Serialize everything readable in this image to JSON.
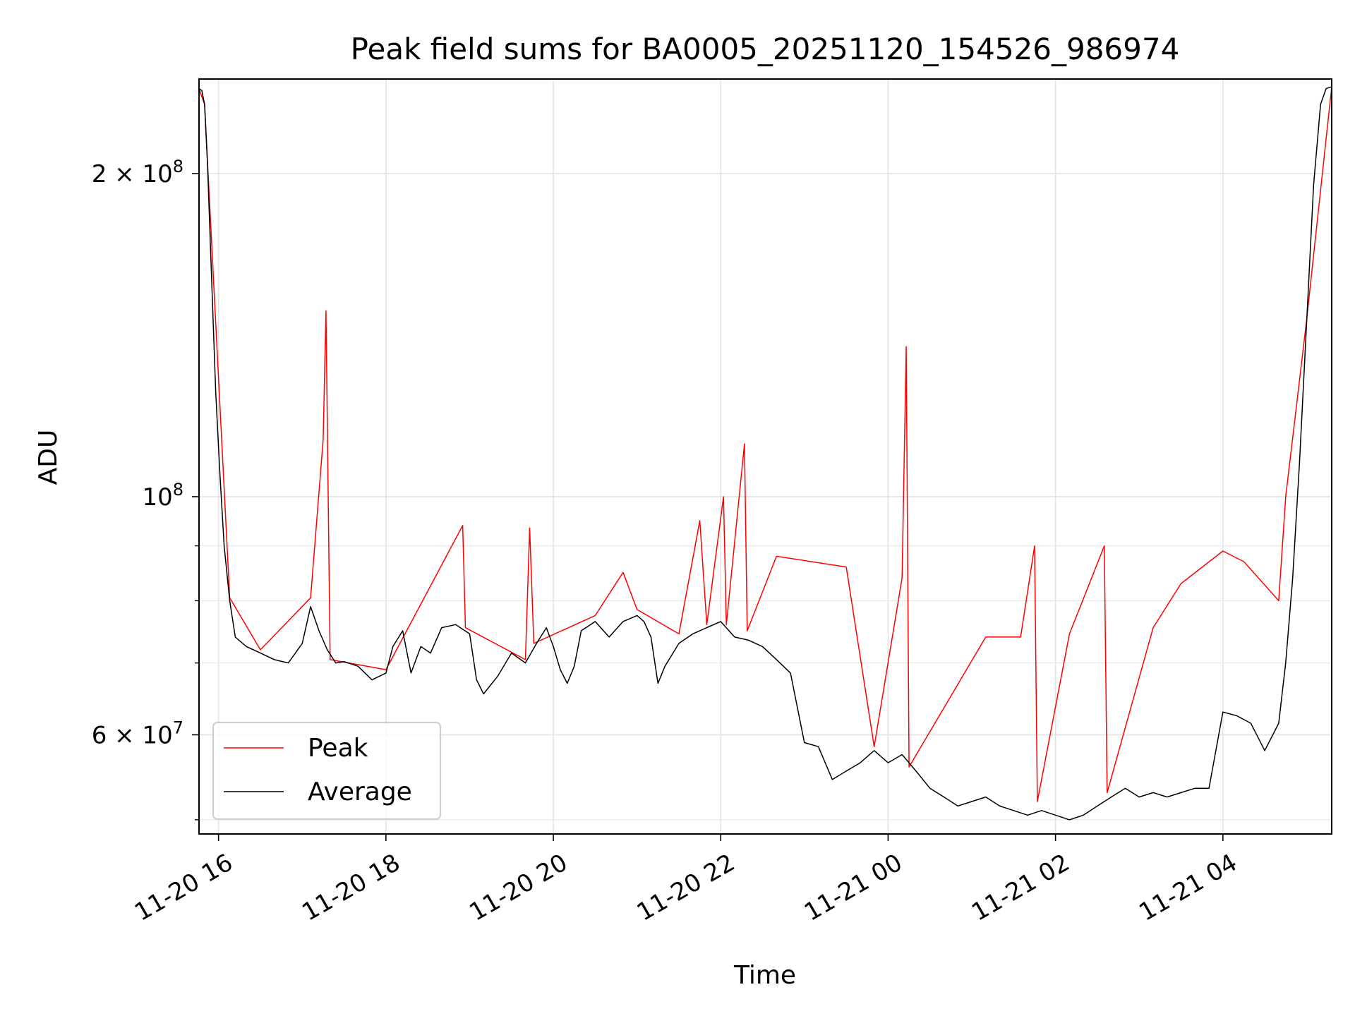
{
  "chart_data": {
    "type": "line",
    "title": "Peak field sums for BA0005_20251120_154526_986974",
    "xlabel": "Time",
    "ylabel": "ADU",
    "x_range": [
      "2025-11-20 15:46",
      "2025-11-21 05:18"
    ],
    "y_scale": "log",
    "ylim": [
      48500000,
      245000000
    ],
    "grid": true,
    "legend_position": "lower-left",
    "x_ticks": [
      "11-20 16",
      "11-20 18",
      "11-20 20",
      "11-20 22",
      "11-21 00",
      "11-21 02",
      "11-21 04"
    ],
    "y_ticks_major": [
      {
        "value": 200000000,
        "label_base": "2 × 10",
        "label_exp": "8"
      },
      {
        "value": 100000000,
        "label_base": "10",
        "label_exp": "8"
      },
      {
        "value": 60000000,
        "label_base": "6 × 10",
        "label_exp": "7"
      }
    ],
    "y_ticks_minor": [
      50000000,
      70000000,
      80000000,
      90000000
    ],
    "series": [
      {
        "name": "Average",
        "color": "#000000",
        "points": [
          [
            "15:46",
            240000000
          ],
          [
            "15:48",
            239000000
          ],
          [
            "15:50",
            232000000
          ],
          [
            "15:52",
            205000000
          ],
          [
            "15:55",
            160000000
          ],
          [
            "15:58",
            125000000
          ],
          [
            "16:01",
            105000000
          ],
          [
            "16:04",
            90000000
          ],
          [
            "16:08",
            80000000
          ],
          [
            "16:12",
            74000000
          ],
          [
            "16:20",
            72500000
          ],
          [
            "16:30",
            71500000
          ],
          [
            "16:40",
            70500000
          ],
          [
            "16:50",
            70000000
          ],
          [
            "17:00",
            73000000
          ],
          [
            "17:06",
            79000000
          ],
          [
            "17:12",
            75000000
          ],
          [
            "17:18",
            72000000
          ],
          [
            "17:24",
            70000000
          ],
          [
            "17:30",
            70200000
          ],
          [
            "17:40",
            69500000
          ],
          [
            "17:50",
            67500000
          ],
          [
            "18:00",
            68500000
          ],
          [
            "18:05",
            72500000
          ],
          [
            "18:12",
            75000000
          ],
          [
            "18:18",
            68500000
          ],
          [
            "18:25",
            72500000
          ],
          [
            "18:32",
            71500000
          ],
          [
            "18:40",
            75500000
          ],
          [
            "18:50",
            76000000
          ],
          [
            "19:00",
            74500000
          ],
          [
            "19:05",
            67500000
          ],
          [
            "19:10",
            65500000
          ],
          [
            "19:20",
            68000000
          ],
          [
            "19:30",
            71500000
          ],
          [
            "19:40",
            70000000
          ],
          [
            "19:48",
            73000000
          ],
          [
            "19:55",
            75500000
          ],
          [
            "20:00",
            72500000
          ],
          [
            "20:05",
            69000000
          ],
          [
            "20:10",
            67000000
          ],
          [
            "20:15",
            69500000
          ],
          [
            "20:20",
            75000000
          ],
          [
            "20:30",
            76500000
          ],
          [
            "20:40",
            74000000
          ],
          [
            "20:50",
            76500000
          ],
          [
            "21:00",
            77500000
          ],
          [
            "21:05",
            76500000
          ],
          [
            "21:10",
            74000000
          ],
          [
            "21:15",
            67000000
          ],
          [
            "21:20",
            69500000
          ],
          [
            "21:30",
            73000000
          ],
          [
            "21:40",
            74500000
          ],
          [
            "21:50",
            75500000
          ],
          [
            "22:00",
            76500000
          ],
          [
            "22:10",
            74000000
          ],
          [
            "22:20",
            73500000
          ],
          [
            "22:30",
            72500000
          ],
          [
            "22:40",
            70500000
          ],
          [
            "22:50",
            68500000
          ],
          [
            "23:00",
            59000000
          ],
          [
            "23:10",
            58500000
          ],
          [
            "23:20",
            54500000
          ],
          [
            "23:30",
            55500000
          ],
          [
            "23:40",
            56500000
          ],
          [
            "23:50",
            58000000
          ],
          [
            "00:00",
            56500000
          ],
          [
            "00:10",
            57500000
          ],
          [
            "00:20",
            55500000
          ],
          [
            "00:30",
            53500000
          ],
          [
            "00:40",
            52500000
          ],
          [
            "00:50",
            51500000
          ],
          [
            "01:00",
            52000000
          ],
          [
            "01:10",
            52500000
          ],
          [
            "01:20",
            51500000
          ],
          [
            "01:30",
            51000000
          ],
          [
            "01:40",
            50500000
          ],
          [
            "01:50",
            51000000
          ],
          [
            "02:00",
            50500000
          ],
          [
            "02:10",
            50000000
          ],
          [
            "02:20",
            50500000
          ],
          [
            "02:30",
            51500000
          ],
          [
            "02:40",
            52500000
          ],
          [
            "02:50",
            53500000
          ],
          [
            "03:00",
            52500000
          ],
          [
            "03:10",
            53000000
          ],
          [
            "03:20",
            52500000
          ],
          [
            "03:30",
            53000000
          ],
          [
            "03:40",
            53500000
          ],
          [
            "03:50",
            53500000
          ],
          [
            "04:00",
            63000000
          ],
          [
            "04:10",
            62500000
          ],
          [
            "04:20",
            61500000
          ],
          [
            "04:30",
            58000000
          ],
          [
            "04:40",
            61500000
          ],
          [
            "04:45",
            70000000
          ],
          [
            "04:50",
            84000000
          ],
          [
            "04:55",
            108000000
          ],
          [
            "05:00",
            145000000
          ],
          [
            "05:05",
            195000000
          ],
          [
            "05:10",
            232000000
          ],
          [
            "05:14",
            240000000
          ],
          [
            "05:18",
            241000000
          ]
        ]
      },
      {
        "name": "Peak",
        "color": "#ff0000",
        "points": [
          [
            "15:46",
            240000000
          ],
          [
            "15:50",
            232000000
          ],
          [
            "16:08",
            80500000
          ],
          [
            "16:30",
            72000000
          ],
          [
            "17:06",
            80500000
          ],
          [
            "17:15",
            113000000
          ],
          [
            "17:17",
            149000000
          ],
          [
            "17:20",
            70500000
          ],
          [
            "18:00",
            69000000
          ],
          [
            "18:55",
            94000000
          ],
          [
            "18:57",
            75500000
          ],
          [
            "19:40",
            70500000
          ],
          [
            "19:43",
            93500000
          ],
          [
            "19:46",
            73000000
          ],
          [
            "20:30",
            77500000
          ],
          [
            "20:50",
            85000000
          ],
          [
            "21:00",
            78500000
          ],
          [
            "21:30",
            74500000
          ],
          [
            "21:45",
            95000000
          ],
          [
            "21:50",
            76000000
          ],
          [
            "22:02",
            100000000
          ],
          [
            "22:04",
            76000000
          ],
          [
            "22:17",
            112000000
          ],
          [
            "22:19",
            75000000
          ],
          [
            "22:40",
            88000000
          ],
          [
            "23:30",
            86000000
          ],
          [
            "23:50",
            58500000
          ],
          [
            "00:10",
            84000000
          ],
          [
            "00:13",
            138000000
          ],
          [
            "00:15",
            56000000
          ],
          [
            "01:10",
            74000000
          ],
          [
            "01:35",
            74000000
          ],
          [
            "01:45",
            90000000
          ],
          [
            "01:47",
            52000000
          ],
          [
            "02:10",
            74500000
          ],
          [
            "02:35",
            90000000
          ],
          [
            "02:37",
            53000000
          ],
          [
            "03:10",
            75500000
          ],
          [
            "03:30",
            83000000
          ],
          [
            "04:00",
            89000000
          ],
          [
            "04:15",
            87000000
          ],
          [
            "04:40",
            80000000
          ],
          [
            "04:45",
            100000000
          ],
          [
            "05:00",
            146000000
          ],
          [
            "05:18",
            241000000
          ]
        ]
      }
    ]
  }
}
